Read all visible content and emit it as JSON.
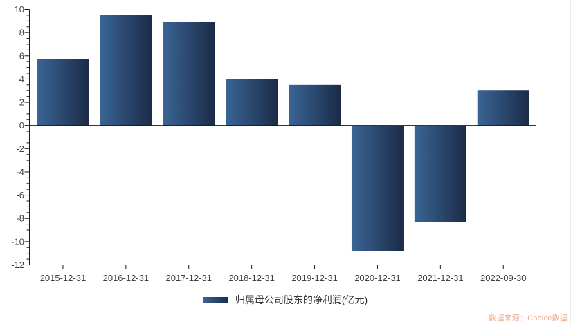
{
  "chart_data": {
    "type": "bar",
    "title": "",
    "xlabel": "",
    "ylabel": "",
    "categories": [
      "2015-12-31",
      "2016-12-31",
      "2017-12-31",
      "2018-12-31",
      "2019-12-31",
      "2020-12-31",
      "2021-12-31",
      "2022-09-30"
    ],
    "series": [
      {
        "name": "归属母公司股东的净利润(亿元)",
        "values": [
          5.7,
          9.5,
          8.9,
          4.0,
          3.5,
          -10.8,
          -8.3,
          3.0
        ]
      }
    ],
    "ylim": [
      -12,
      10
    ],
    "yticks": [
      -12,
      -10,
      -8,
      -6,
      -4,
      -2,
      0,
      2,
      4,
      6,
      8,
      10
    ],
    "ytick_minor_step": 0.5,
    "grid": false,
    "legend_position": "bottom-center",
    "bar_gradient_left": "#3A6595",
    "bar_gradient_right": "#1B2B48"
  },
  "legend": {
    "label": "归属母公司股东的净利润(亿元)"
  },
  "source": {
    "label": "数据来源：Choice数据",
    "color": "#F2A284"
  },
  "colors": {
    "axis": "#1a1a1a",
    "tick_label": "#404040",
    "legend_text": "#333333"
  }
}
